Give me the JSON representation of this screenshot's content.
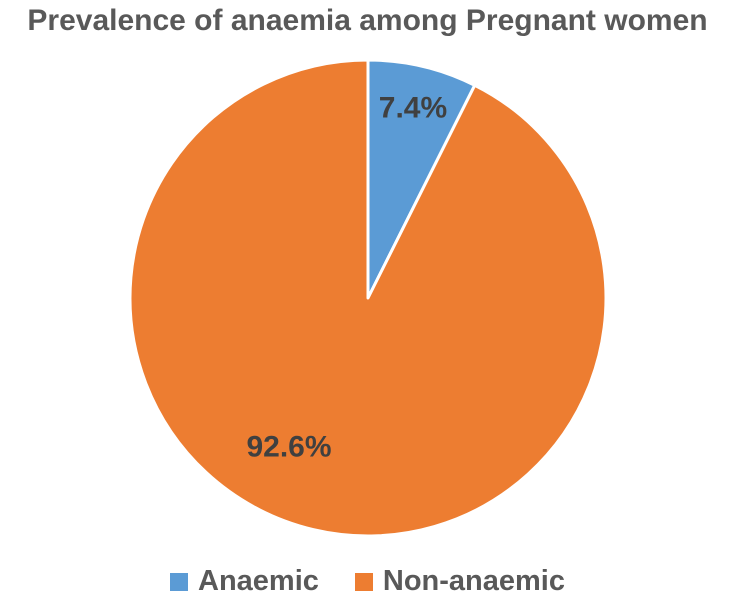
{
  "chart_data": {
    "type": "pie",
    "title": "Prevalence of anaemia among Pregnant women",
    "categories": [
      "Anaemic",
      "Non-anaemic"
    ],
    "values": [
      7.4,
      92.6
    ],
    "data_labels": [
      "7.4%",
      "92.6%"
    ],
    "colors": [
      "#5b9bd5",
      "#ed7d31"
    ],
    "legend_position": "bottom",
    "start_angle": "top, clockwise"
  }
}
